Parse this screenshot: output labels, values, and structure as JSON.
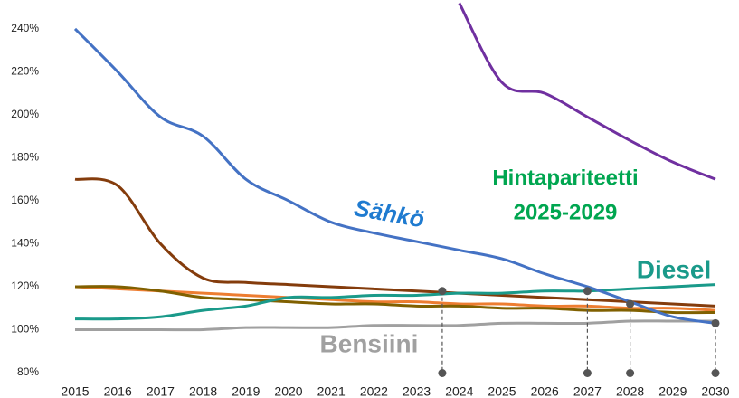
{
  "chart_data": {
    "type": "line",
    "x": [
      2015,
      2016,
      2017,
      2018,
      2019,
      2020,
      2021,
      2022,
      2023,
      2024,
      2025,
      2026,
      2027,
      2028,
      2029,
      2030
    ],
    "xlim": [
      2015,
      2030
    ],
    "xticks": [
      2015,
      2016,
      2017,
      2018,
      2019,
      2020,
      2021,
      2022,
      2023,
      2024,
      2025,
      2026,
      2027,
      2028,
      2029,
      2030
    ],
    "ylim": [
      76,
      253
    ],
    "yticks": [
      {
        "value": 80,
        "label": "80%"
      },
      {
        "value": 100,
        "label": "100%"
      },
      {
        "value": 120,
        "label": "120%"
      },
      {
        "value": 140,
        "label": "140%"
      },
      {
        "value": 160,
        "label": "160%"
      },
      {
        "value": 180,
        "label": "180%"
      },
      {
        "value": 200,
        "label": "200%"
      },
      {
        "value": 220,
        "label": "220%"
      },
      {
        "value": 240,
        "label": "240%"
      }
    ],
    "grid": false,
    "series": [
      {
        "color": "#7030a0",
        "values": [
          null,
          null,
          null,
          null,
          null,
          null,
          null,
          null,
          null,
          252,
          215,
          210,
          199,
          188,
          178,
          170
        ]
      },
      {
        "color": "#843c0c",
        "values": [
          170,
          167,
          140,
          124,
          122,
          121,
          120,
          119,
          118,
          117,
          116,
          115,
          114,
          113,
          112,
          111
        ]
      },
      {
        "color": "#ed7d31",
        "values": [
          120,
          119,
          118,
          117,
          116,
          115,
          114,
          113,
          113,
          112,
          112,
          111,
          111,
          110,
          110,
          109
        ]
      },
      {
        "color": "#806000",
        "values": [
          120,
          120,
          118,
          115,
          114,
          113,
          112,
          112,
          111,
          111,
          110,
          110,
          109,
          109,
          108,
          108
        ]
      },
      {
        "name": "Diesel",
        "color": "#1a9a8a",
        "values": [
          105,
          105,
          106,
          109,
          111,
          115,
          115,
          116,
          116,
          117,
          117,
          118,
          118,
          119,
          120,
          121
        ]
      },
      {
        "name": "Bensiini",
        "color": "#a0a0a0",
        "values": [
          100,
          100,
          100,
          100,
          101,
          101,
          101,
          102,
          102,
          102,
          103,
          103,
          103,
          104,
          104,
          104
        ]
      },
      {
        "name": "Sähkö",
        "color": "#4472c4",
        "values": [
          240,
          220,
          199,
          190,
          170,
          160,
          150,
          145,
          141,
          137,
          133,
          126,
          120,
          113,
          106,
          103
        ]
      }
    ],
    "markers": [
      {
        "x": 2023.6,
        "y": 118
      },
      {
        "x": 2027,
        "y": 118
      },
      {
        "x": 2028,
        "y": 112
      },
      {
        "x": 2030,
        "y": 103
      }
    ],
    "annotations": [
      "Hintapariteetti",
      "2025-2029"
    ]
  }
}
